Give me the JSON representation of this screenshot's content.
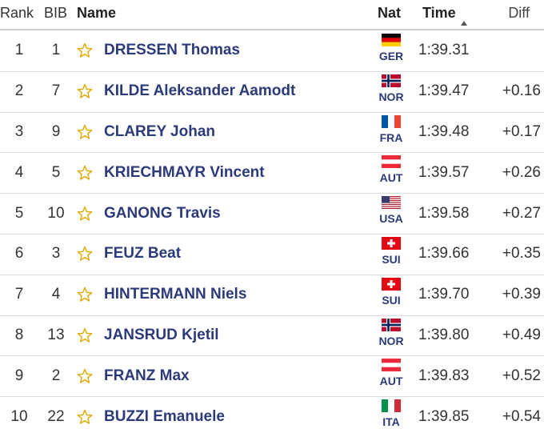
{
  "table": {
    "header": {
      "rank": "Rank",
      "bib": "BIB",
      "name": "Name",
      "nat": "Nat",
      "time": "Time",
      "diff": "Diff"
    },
    "rows": [
      {
        "rank": 1,
        "bib": 1,
        "name": "DRESSEN Thomas",
        "nat": "GER",
        "time": "1:39.31"
      },
      {
        "rank": 2,
        "bib": 7,
        "name": "KILDE Aleksander Aamodt",
        "nat": "NOR",
        "time": "1:39.47",
        "diff": "+0.16"
      },
      {
        "rank": 3,
        "bib": 9,
        "name": "CLAREY Johan",
        "nat": "FRA",
        "time": "1:39.48",
        "diff": "+0.17"
      },
      {
        "rank": 4,
        "bib": 5,
        "name": "KRIECHMAYR Vincent",
        "nat": "AUT",
        "time": "1:39.57",
        "diff": "+0.26"
      },
      {
        "rank": 5,
        "bib": 10,
        "name": "GANONG Travis",
        "nat": "USA",
        "time": "1:39.58",
        "diff": "+0.27"
      },
      {
        "rank": 6,
        "bib": 3,
        "name": "FEUZ Beat",
        "nat": "SUI",
        "time": "1:39.66",
        "diff": "+0.35"
      },
      {
        "rank": 7,
        "bib": 4,
        "name": "HINTERMANN Niels",
        "nat": "SUI",
        "time": "1:39.70",
        "diff": "+0.39"
      },
      {
        "rank": 8,
        "bib": 13,
        "name": "JANSRUD Kjetil",
        "nat": "NOR",
        "time": "1:39.80",
        "diff": "+0.49"
      },
      {
        "rank": 9,
        "bib": 2,
        "name": "FRANZ Max",
        "nat": "AUT",
        "time": "1:39.83",
        "diff": "+0.52"
      },
      {
        "rank": 10,
        "bib": 22,
        "name": "BUZZI Emanuele",
        "nat": "ITA",
        "time": "1:39.85",
        "diff": "+0.54"
      }
    ]
  }
}
